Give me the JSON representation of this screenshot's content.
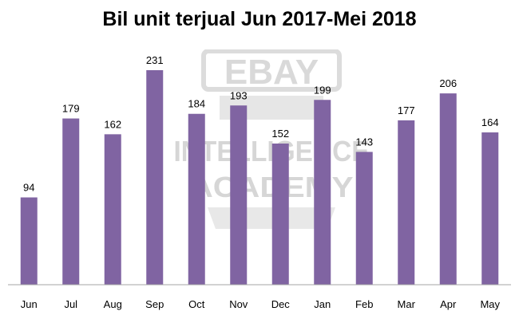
{
  "chart_data": {
    "type": "bar",
    "title": "Bil unit terjual Jun 2017-Mei 2018",
    "categories": [
      "Jun",
      "Jul",
      "Aug",
      "Sep",
      "Oct",
      "Nov",
      "Dec",
      "Jan",
      "Feb",
      "Mar",
      "Apr",
      "May"
    ],
    "values": [
      94,
      179,
      162,
      231,
      184,
      193,
      152,
      199,
      143,
      177,
      206,
      164
    ],
    "xlabel": "",
    "ylabel": "",
    "ylim": [
      0,
      240
    ],
    "grid": false,
    "legend": "none",
    "data_labels": true,
    "bar_color": "#8064A2"
  },
  "watermark": {
    "line1": "EBAY",
    "line2": "INTELLIGENCE",
    "line3": "ACADEMY",
    "color": "#d4d4d4"
  }
}
